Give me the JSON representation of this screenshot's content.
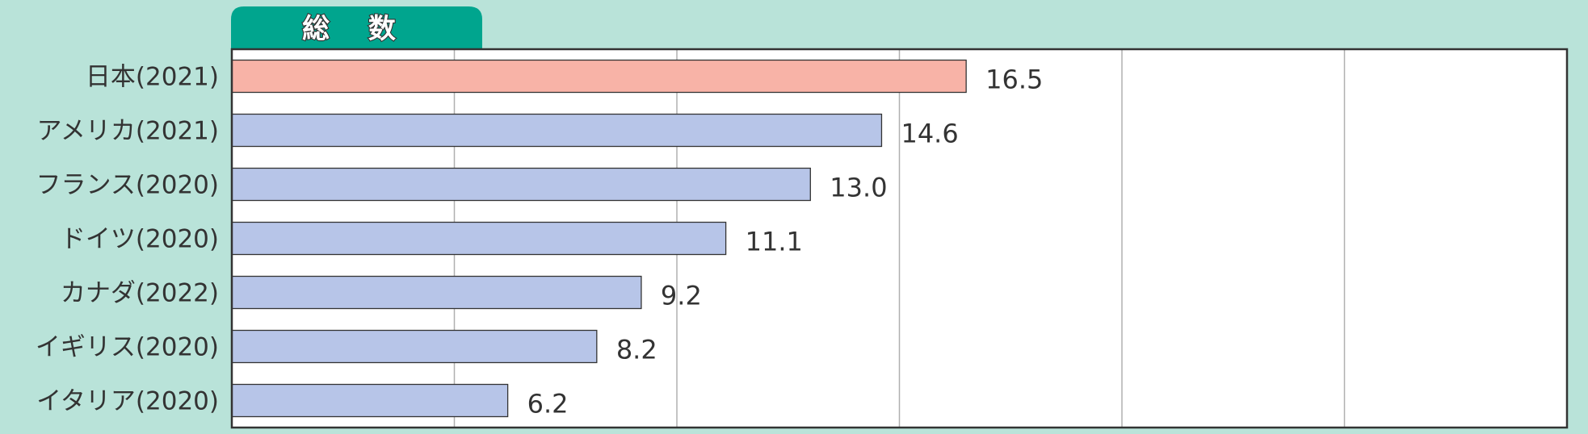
{
  "tab": {
    "label": "総 数"
  },
  "colors": {
    "background": "#b9e3d9",
    "tab": "#00a58e",
    "highlight_bar": "#f8b3a7",
    "bar": "#b7c5e8",
    "plot_background": "#ffffff",
    "gridline": "#b0b0b0",
    "text": "#333333"
  },
  "chart_data": {
    "type": "bar",
    "orientation": "horizontal",
    "title": "総 数",
    "categories": [
      "日本(2021)",
      "アメリカ(2021)",
      "フランス(2020)",
      "ドイツ(2020)",
      "カナダ(2022)",
      "イギリス(2020)",
      "イタリア(2020)"
    ],
    "values": [
      16.5,
      14.6,
      13.0,
      11.1,
      9.2,
      8.2,
      6.2
    ],
    "value_labels": [
      "16.5",
      "14.6",
      "13.0",
      "11.1",
      "9.2",
      "8.2",
      "6.2"
    ],
    "highlight_index": 0,
    "xlim": [
      0,
      30
    ],
    "gridlines_at": [
      5,
      10,
      15,
      20,
      25
    ],
    "grid": true,
    "legend": "none",
    "xlabel": "",
    "ylabel": ""
  }
}
